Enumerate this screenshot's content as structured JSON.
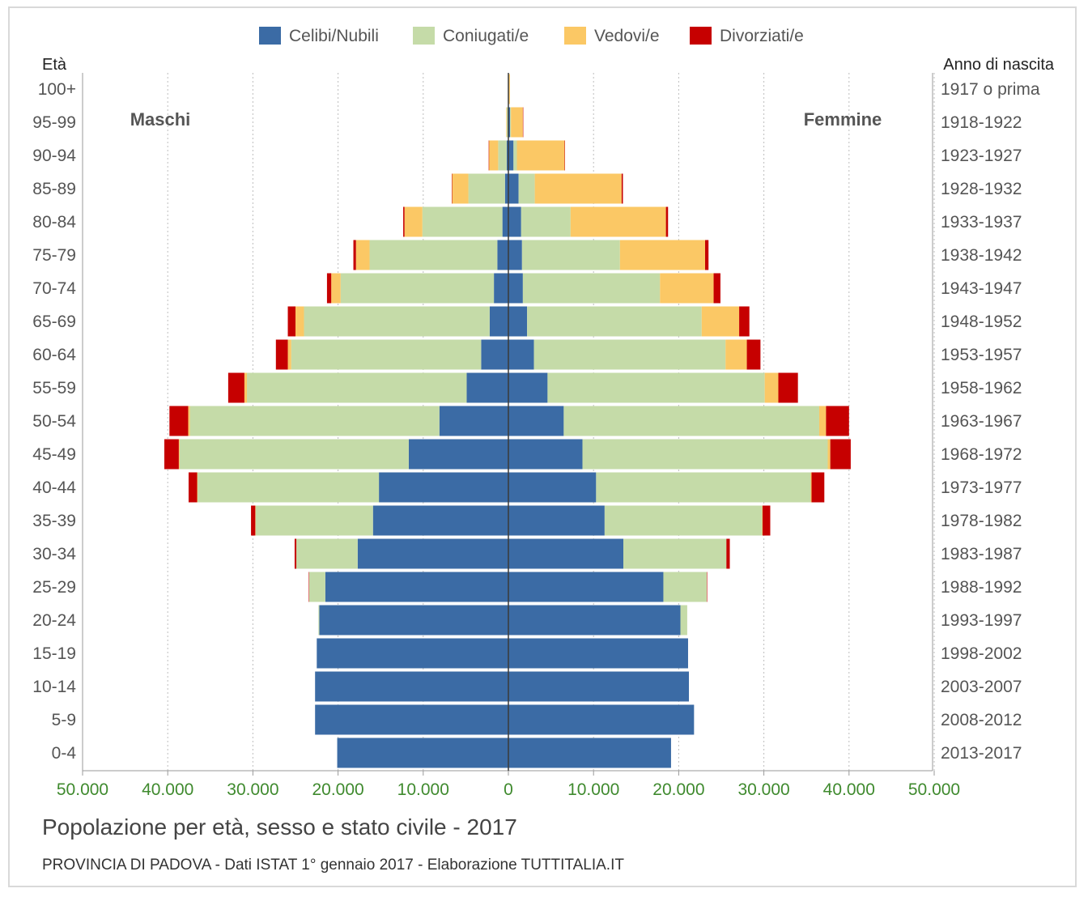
{
  "chart_data": {
    "type": "bar",
    "title": "Popolazione per età, sesso e stato civile - 2017",
    "subtitle": "PROVINCIA DI PADOVA - Dati ISTAT 1° gennaio 2017 - Elaborazione TUTTITALIA.IT",
    "left_header": "Età",
    "right_header": "Anno di nascita",
    "left_side_label": "Maschi",
    "right_side_label": "Femmine",
    "legend_position": "top",
    "grid": true,
    "xlim": [
      -50000,
      50000
    ],
    "x_ticks": [
      {
        "value": -50000,
        "label": "50.000"
      },
      {
        "value": -40000,
        "label": "40.000"
      },
      {
        "value": -30000,
        "label": "30.000"
      },
      {
        "value": -20000,
        "label": "20.000"
      },
      {
        "value": -10000,
        "label": "10.000"
      },
      {
        "value": 0,
        "label": "0"
      },
      {
        "value": 10000,
        "label": "10.000"
      },
      {
        "value": 20000,
        "label": "20.000"
      },
      {
        "value": 30000,
        "label": "30.000"
      },
      {
        "value": 40000,
        "label": "40.000"
      },
      {
        "value": 50000,
        "label": "50.000"
      }
    ],
    "series": [
      {
        "name": "Celibi/Nubili",
        "color": "#3b6ba5"
      },
      {
        "name": "Coniugati/e",
        "color": "#c5dba8"
      },
      {
        "name": "Vedovi/e",
        "color": "#fbc865"
      },
      {
        "name": "Divorziati/e",
        "color": "#c60000"
      }
    ],
    "age_groups": [
      "100+",
      "95-99",
      "90-94",
      "85-89",
      "80-84",
      "75-79",
      "70-74",
      "65-69",
      "60-64",
      "55-59",
      "50-54",
      "45-49",
      "40-44",
      "35-39",
      "30-34",
      "25-29",
      "20-24",
      "15-19",
      "10-14",
      "5-9",
      "0-4"
    ],
    "birth_years": [
      "1917 o prima",
      "1918-1922",
      "1923-1927",
      "1928-1932",
      "1933-1937",
      "1938-1942",
      "1943-1947",
      "1948-1952",
      "1953-1957",
      "1958-1962",
      "1963-1967",
      "1968-1972",
      "1973-1977",
      "1978-1982",
      "1983-1987",
      "1988-1992",
      "1993-1997",
      "1998-2002",
      "2003-2007",
      "2008-2012",
      "2013-2017"
    ],
    "males": {
      "Celibi/Nubili": [
        10,
        40,
        200,
        400,
        700,
        1300,
        1700,
        2200,
        3200,
        4900,
        8100,
        11700,
        15200,
        15900,
        17700,
        21500,
        22200,
        22500,
        22700,
        22700,
        20100
      ],
      "Coniugati/e": [
        20,
        150,
        1000,
        4300,
        9400,
        15000,
        18000,
        21800,
        22300,
        25800,
        29300,
        26900,
        21300,
        13800,
        7200,
        1900,
        100,
        0,
        0,
        0,
        0
      ],
      "Vedovi/e": [
        10,
        60,
        1100,
        1900,
        2100,
        1600,
        1100,
        1000,
        400,
        300,
        200,
        100,
        50,
        20,
        0,
        0,
        0,
        0,
        0,
        0,
        0
      ],
      "Divorziati/e": [
        0,
        0,
        10,
        50,
        150,
        300,
        500,
        900,
        1400,
        1900,
        2200,
        1700,
        1000,
        500,
        200,
        50,
        0,
        0,
        0,
        0,
        0
      ]
    },
    "females": {
      "Celibi/Nubili": [
        20,
        200,
        600,
        1200,
        1500,
        1600,
        1700,
        2200,
        3000,
        4600,
        6500,
        8700,
        10300,
        11300,
        13500,
        18200,
        20200,
        21100,
        21200,
        21800,
        19100
      ],
      "Coniugati/e": [
        10,
        100,
        400,
        1900,
        5800,
        11500,
        16100,
        20500,
        22500,
        25500,
        30000,
        28800,
        25200,
        18500,
        12100,
        5100,
        800,
        0,
        0,
        0,
        0
      ],
      "Vedovi/e": [
        150,
        1400,
        5600,
        10200,
        11200,
        10000,
        6300,
        4400,
        2500,
        1600,
        800,
        300,
        100,
        50,
        0,
        0,
        0,
        0,
        0,
        0,
        0
      ],
      "Divorziati/e": [
        0,
        20,
        50,
        150,
        250,
        400,
        800,
        1200,
        1600,
        2300,
        2700,
        2400,
        1500,
        900,
        400,
        50,
        0,
        0,
        0,
        0,
        0
      ]
    }
  }
}
